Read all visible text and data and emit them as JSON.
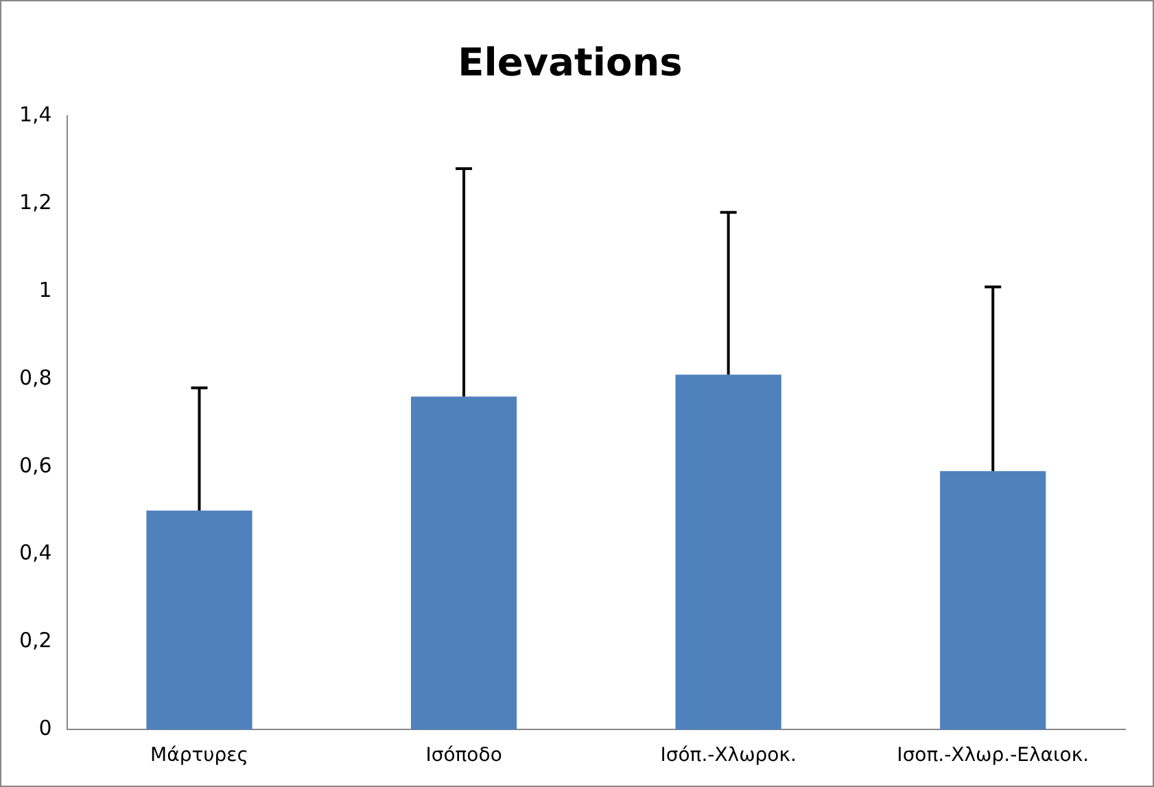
{
  "chart_data": {
    "type": "bar",
    "title": "Elevations",
    "categories": [
      "Μάρτυρες",
      "Ισόποδο",
      "Ισόπ.-Χλωροκ.",
      "Ισοπ.-Χλωρ.-Ελαιοκ."
    ],
    "values": [
      0.5,
      0.76,
      0.81,
      0.59
    ],
    "errors": [
      [
        0.5,
        0.78
      ],
      [
        0.76,
        1.28
      ],
      [
        0.81,
        1.18
      ],
      [
        0.59,
        1.01
      ]
    ],
    "color": "#4f81bd",
    "ylim": [
      0,
      1.4
    ],
    "yticks": [
      0,
      {
        "value": 0.2,
        "label": "0,2"
      },
      {
        "value": 0.4,
        "label": "0,4"
      },
      {
        "value": 0.6,
        "label": "0,6"
      },
      {
        "value": 0.8,
        "label": "0,8"
      },
      1,
      {
        "value": 1.2,
        "label": "1,2"
      },
      {
        "value": 1.4,
        "label": "1,4"
      }
    ],
    "grid": false,
    "legend": false
  }
}
